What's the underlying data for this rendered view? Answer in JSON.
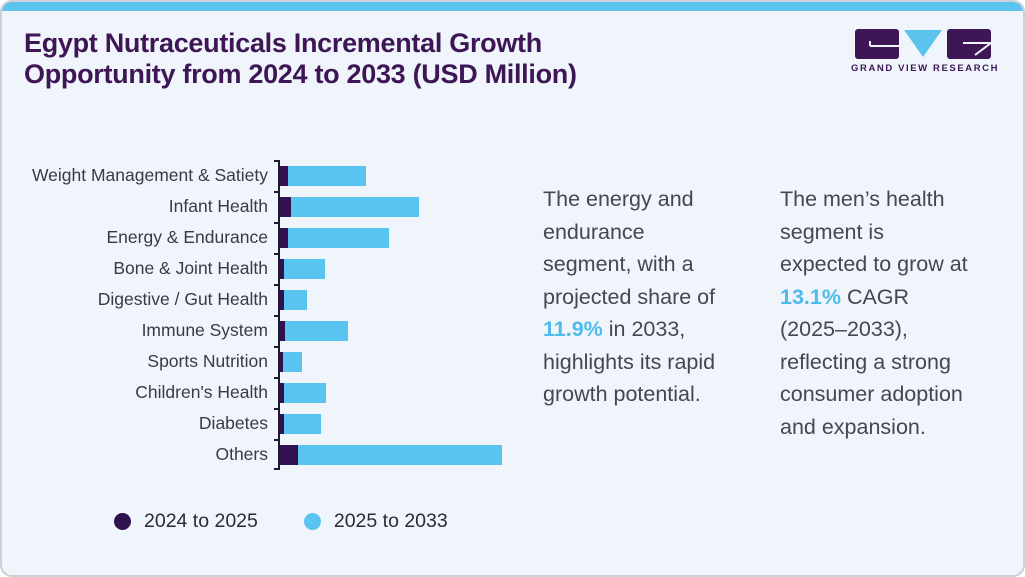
{
  "card": {
    "title_line1": "Egypt Nutraceuticals Incremental Growth",
    "title_line2": "Opportunity from 2024 to 2033 (USD Million)",
    "brand": {
      "name": "GRAND VIEW RESEARCH"
    }
  },
  "colors": {
    "accent_blue": "#5bc3ee",
    "dark_purple": "#321150",
    "title_purple": "#3e1656",
    "card_background": "#eff5fa",
    "body_text": "#46464e"
  },
  "chart_data": {
    "type": "bar",
    "orientation": "horizontal",
    "stacked": true,
    "grid": false,
    "legend_position": "bottom-left",
    "title": "Egypt Nutraceuticals Incremental Growth Opportunity from 2024 to 2033 (USD Million)",
    "xlabel": "",
    "ylabel": "",
    "value_note": "no numeric axis shown; values are relative bar lengths in px",
    "categories": [
      "Weight Management & Satiety",
      "Infant Health",
      "Energy & Endurance",
      "Bone & Joint Health",
      "Digestive / Gut Health",
      "Immune System",
      "Sports Nutrition",
      "Children's Health",
      "Diabetes",
      "Others"
    ],
    "series": [
      {
        "name": "2024 to 2025",
        "color": "#321150",
        "values": [
          8,
          11,
          8,
          4,
          4,
          5,
          3,
          4,
          4,
          18
        ]
      },
      {
        "name": "2025 to 2033",
        "color": "#5ac4f0",
        "values": [
          78,
          128,
          101,
          41,
          23,
          63,
          19,
          42,
          37,
          204
        ]
      }
    ]
  },
  "insights": [
    {
      "lines": [
        [
          {
            "t": "The energy and"
          }
        ],
        [
          {
            "t": "endurance"
          }
        ],
        [
          {
            "t": "segment, with a"
          }
        ],
        [
          {
            "t": "projected share of"
          }
        ],
        [
          {
            "t": "11.9%",
            "accent": true
          },
          {
            "t": " in 2033,"
          }
        ],
        [
          {
            "t": "highlights its rapid"
          }
        ],
        [
          {
            "t": "growth potential."
          }
        ]
      ]
    },
    {
      "lines": [
        [
          {
            "t": "The men’s health"
          }
        ],
        [
          {
            "t": "segment is"
          }
        ],
        [
          {
            "t": "expected to grow at"
          }
        ],
        [
          {
            "t": "13.1%",
            "accent": true
          },
          {
            "t": " CAGR"
          }
        ],
        [
          {
            "t": "(2025–2033),"
          }
        ],
        [
          {
            "t": "reflecting a strong"
          }
        ],
        [
          {
            "t": "consumer adoption"
          }
        ],
        [
          {
            "t": "and expansion."
          }
        ]
      ]
    }
  ]
}
